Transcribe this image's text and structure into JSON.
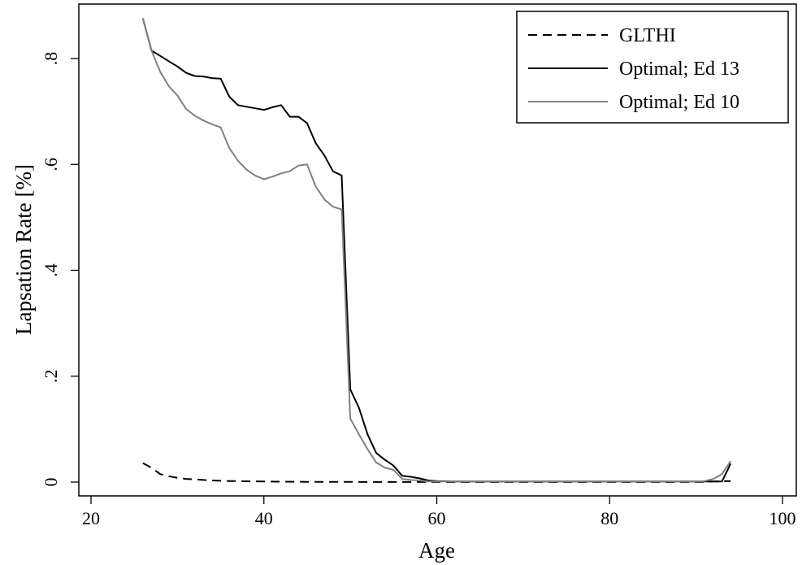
{
  "chart_data": {
    "type": "line",
    "title": "",
    "xlabel": "Age",
    "ylabel": "Lapsation Rate [%]",
    "xlim": [
      20,
      100
    ],
    "ylim": [
      0,
      0.9
    ],
    "xticks": [
      20,
      40,
      60,
      80,
      100
    ],
    "xtick_labels": [
      "20",
      "40",
      "60",
      "80",
      "100"
    ],
    "yticks": [
      0,
      0.2,
      0.4,
      0.6,
      0.8
    ],
    "ytick_labels": [
      "0",
      ".2",
      ".4",
      ".6",
      ".8"
    ],
    "grid": false,
    "legend_position": "top-right",
    "series": [
      {
        "name": "GLTHI",
        "color": "#000000",
        "dash": "dashed",
        "x": [
          26,
          27,
          28,
          29,
          30,
          31,
          32,
          33,
          34,
          35,
          36,
          38,
          40,
          45,
          50,
          55,
          60,
          70,
          80,
          90,
          94
        ],
        "y": [
          0.036,
          0.027,
          0.015,
          0.011,
          0.008,
          0.006,
          0.005,
          0.004,
          0.003,
          0.0025,
          0.002,
          0.0015,
          0.001,
          0.0005,
          0.0003,
          0.0002,
          0.0001,
          0.0001,
          0.0001,
          0.0001,
          0.002
        ]
      },
      {
        "name": "Optimal; Ed 13",
        "color": "#000000",
        "dash": "solid",
        "x": [
          26,
          27,
          28,
          29,
          30,
          31,
          32,
          33,
          34,
          35,
          36,
          37,
          38,
          39,
          40,
          41,
          42,
          43,
          44,
          45,
          46,
          47,
          48,
          49,
          50,
          51,
          52,
          53,
          54,
          55,
          56,
          57,
          58,
          59,
          60,
          62,
          65,
          70,
          80,
          90,
          92,
          93,
          94
        ],
        "y": [
          0.876,
          0.815,
          0.805,
          0.795,
          0.785,
          0.773,
          0.767,
          0.766,
          0.763,
          0.762,
          0.728,
          0.712,
          0.709,
          0.706,
          0.703,
          0.708,
          0.712,
          0.69,
          0.69,
          0.678,
          0.64,
          0.617,
          0.587,
          0.579,
          0.175,
          0.14,
          0.09,
          0.055,
          0.042,
          0.031,
          0.012,
          0.01,
          0.007,
          0.003,
          0.002,
          0.001,
          0.001,
          0.001,
          0.001,
          0.001,
          0.001,
          0.001,
          0.035
        ]
      },
      {
        "name": "Optimal; Ed 10",
        "color": "#808080",
        "dash": "solid",
        "x": [
          26,
          27,
          28,
          29,
          30,
          31,
          32,
          33,
          34,
          35,
          36,
          37,
          38,
          39,
          40,
          41,
          42,
          43,
          44,
          45,
          46,
          47,
          48,
          49,
          50,
          51,
          52,
          53,
          54,
          55,
          56,
          57,
          58,
          59,
          60,
          62,
          65,
          70,
          80,
          90,
          91,
          92,
          93,
          94
        ],
        "y": [
          0.876,
          0.815,
          0.775,
          0.748,
          0.73,
          0.705,
          0.692,
          0.683,
          0.676,
          0.67,
          0.631,
          0.607,
          0.59,
          0.579,
          0.572,
          0.577,
          0.583,
          0.587,
          0.598,
          0.6,
          0.558,
          0.534,
          0.52,
          0.515,
          0.12,
          0.09,
          0.062,
          0.037,
          0.027,
          0.023,
          0.006,
          0.004,
          0.003,
          0.001,
          0.001,
          0.001,
          0.001,
          0.001,
          0.001,
          0.001,
          0.002,
          0.006,
          0.015,
          0.04
        ]
      }
    ]
  }
}
